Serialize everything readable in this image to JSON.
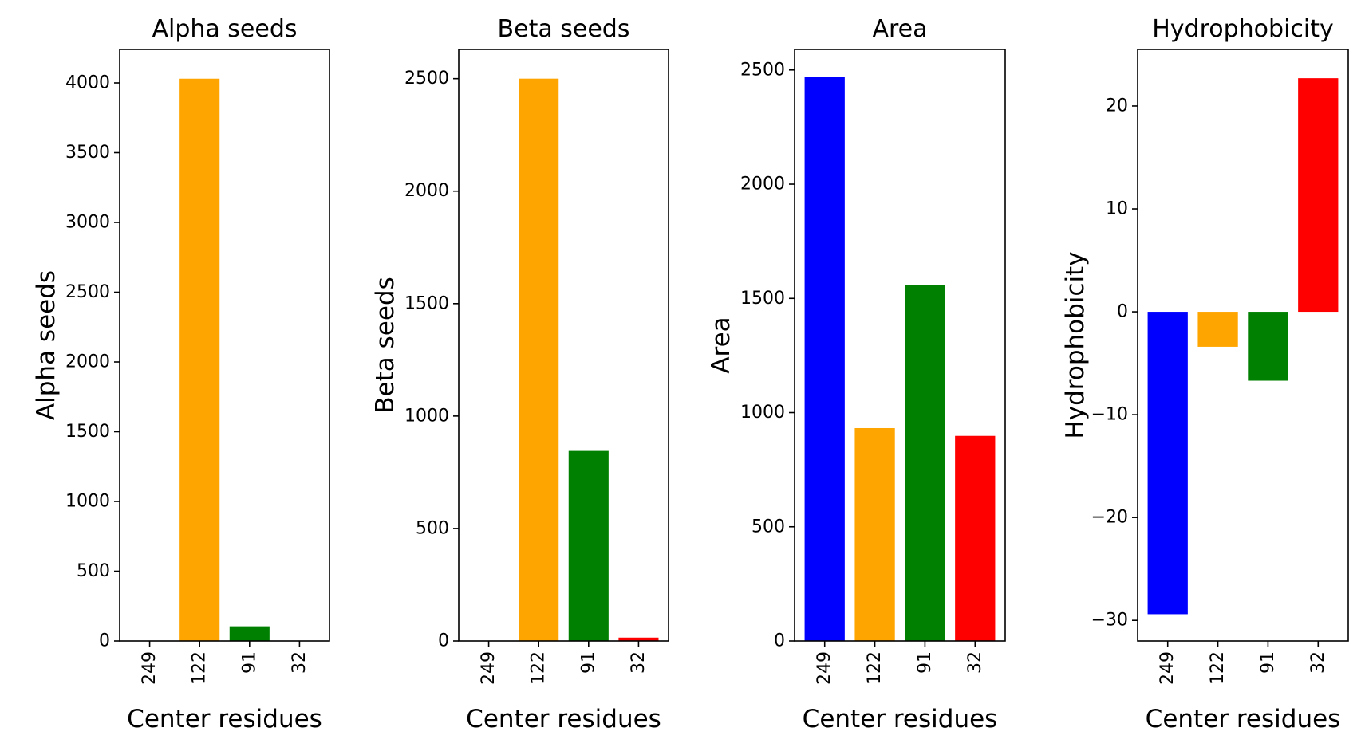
{
  "figure": {
    "panel_count": 4
  },
  "chart_data": [
    {
      "type": "bar",
      "title": "Alpha seeds",
      "xlabel": "Center residues",
      "ylabel": "Alpha seeds",
      "categories": [
        "249",
        "122",
        "91",
        "32"
      ],
      "values": [
        0,
        4030,
        105,
        0
      ],
      "colors": [
        "#0000ff",
        "#ffa500",
        "#008000",
        "#ff0000"
      ],
      "ylim": [
        0,
        4240
      ],
      "yticks": [
        0,
        500,
        1000,
        1500,
        2000,
        2500,
        3000,
        3500,
        4000
      ],
      "ytick_labels": [
        "0",
        "500",
        "1000",
        "1500",
        "2000",
        "2500",
        "3000",
        "3500",
        "4000"
      ],
      "grid": false
    },
    {
      "type": "bar",
      "title": "Beta seeds",
      "xlabel": "Center residues",
      "ylabel": "Beta seeds",
      "categories": [
        "249",
        "122",
        "91",
        "32"
      ],
      "values": [
        0,
        2500,
        845,
        15
      ],
      "colors": [
        "#0000ff",
        "#ffa500",
        "#008000",
        "#ff0000"
      ],
      "ylim": [
        0,
        2630
      ],
      "yticks": [
        0,
        500,
        1000,
        1500,
        2000,
        2500
      ],
      "ytick_labels": [
        "0",
        "500",
        "1000",
        "1500",
        "2000",
        "2500"
      ],
      "grid": false
    },
    {
      "type": "bar",
      "title": "Area",
      "xlabel": "Center residues",
      "ylabel": "Area",
      "categories": [
        "249",
        "122",
        "91",
        "32"
      ],
      "values": [
        2470,
        932,
        1560,
        898
      ],
      "colors": [
        "#0000ff",
        "#ffa500",
        "#008000",
        "#ff0000"
      ],
      "ylim": [
        0,
        2590
      ],
      "yticks": [
        0,
        500,
        1000,
        1500,
        2000,
        2500
      ],
      "ytick_labels": [
        "0",
        "500",
        "1000",
        "1500",
        "2000",
        "2500"
      ],
      "grid": false
    },
    {
      "type": "bar",
      "title": "Hydrophobicity",
      "xlabel": "Center residues",
      "ylabel": "Hydrophobicity",
      "categories": [
        "249",
        "122",
        "91",
        "32"
      ],
      "values": [
        -29.4,
        -3.4,
        -6.7,
        22.7
      ],
      "colors": [
        "#0000ff",
        "#ffa500",
        "#008000",
        "#ff0000"
      ],
      "ylim": [
        -32,
        25.5
      ],
      "yticks": [
        -30,
        -20,
        -10,
        0,
        10,
        20
      ],
      "ytick_labels": [
        "−30",
        "−20",
        "−10",
        "0",
        "10",
        "20"
      ],
      "grid": false
    }
  ]
}
